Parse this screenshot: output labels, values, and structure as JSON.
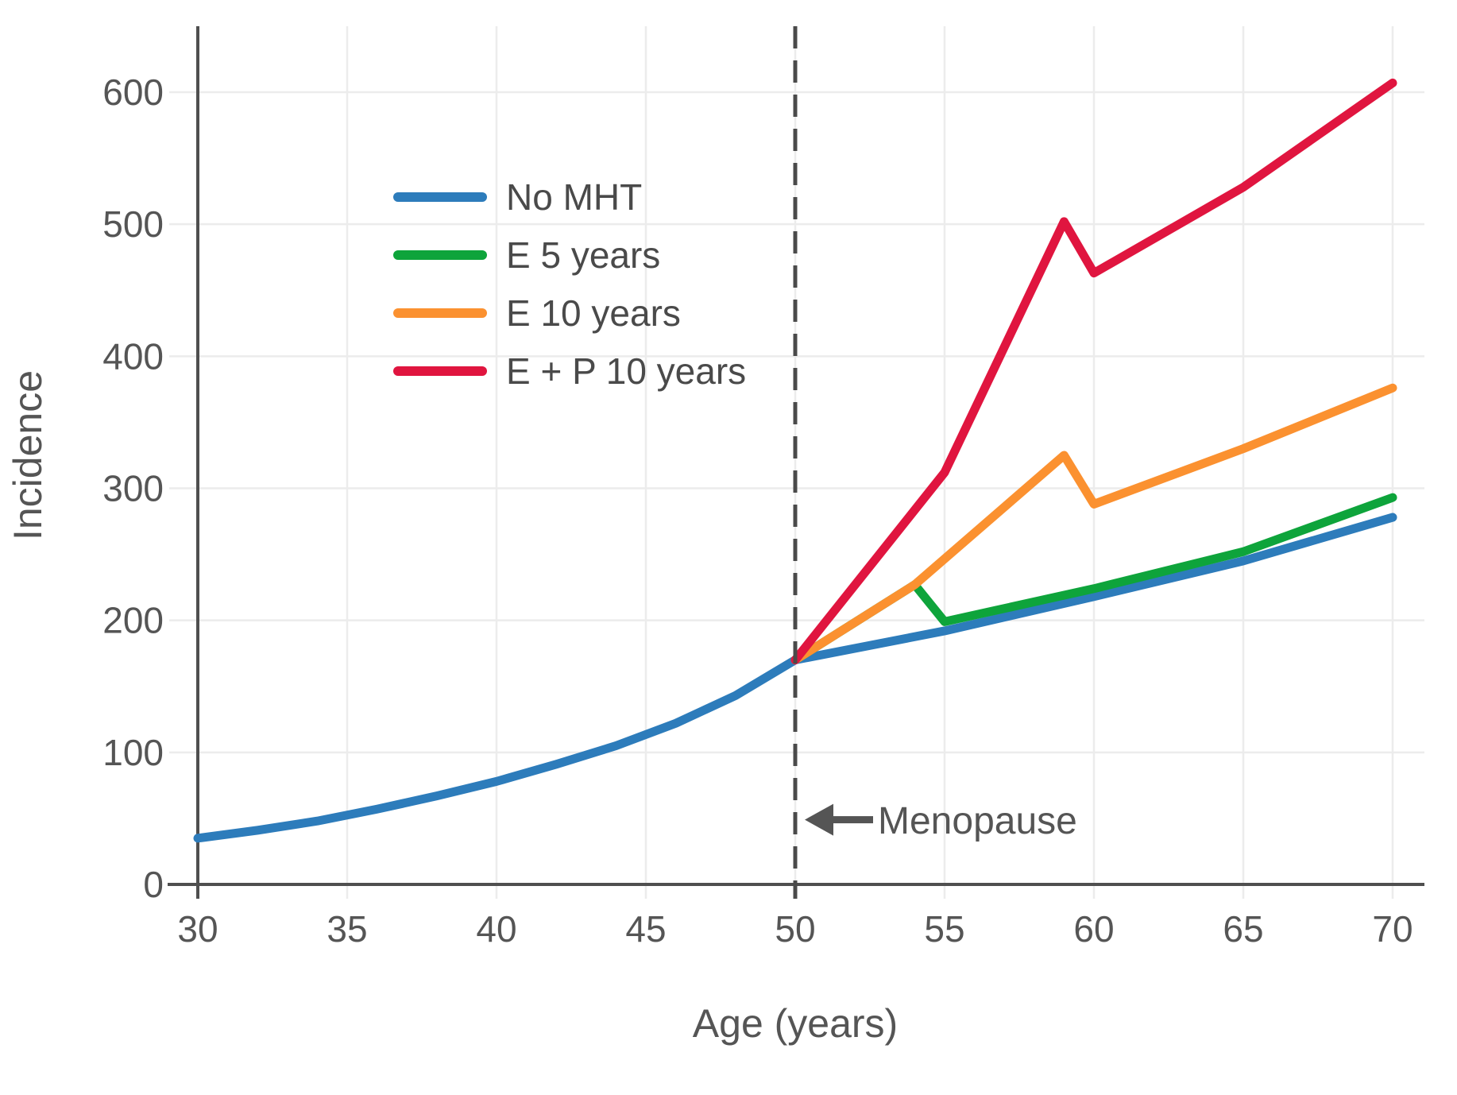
{
  "chart_data": {
    "type": "line",
    "title": "",
    "xlabel": "Age (years)",
    "ylabel": "Incidence",
    "xlim": [
      30,
      70
    ],
    "ylim": [
      0,
      600
    ],
    "xticks": [
      30,
      35,
      40,
      45,
      50,
      55,
      60,
      65,
      70
    ],
    "yticks": [
      0,
      100,
      200,
      300,
      400,
      500,
      600
    ],
    "grid": true,
    "legend_position": "upper-left-inside",
    "colors": {
      "grid": "#ececec",
      "axis": "#4f4f4f",
      "text": "#555555",
      "legend_text": "#4a4a4a"
    },
    "series": [
      {
        "name": "No MHT",
        "color": "#2d7cbb",
        "points": [
          [
            30,
            35
          ],
          [
            32,
            41
          ],
          [
            34,
            48
          ],
          [
            36,
            57
          ],
          [
            38,
            67
          ],
          [
            40,
            78
          ],
          [
            42,
            91
          ],
          [
            44,
            105
          ],
          [
            46,
            122
          ],
          [
            48,
            143
          ],
          [
            50,
            170
          ],
          [
            55,
            192
          ],
          [
            60,
            218
          ],
          [
            65,
            245
          ],
          [
            70,
            278
          ]
        ]
      },
      {
        "name": "E 5 years",
        "color": "#0ea43b",
        "points": [
          [
            50,
            170
          ],
          [
            54,
            227
          ],
          [
            55,
            199
          ],
          [
            60,
            224
          ],
          [
            65,
            252
          ],
          [
            70,
            293
          ]
        ]
      },
      {
        "name": "E 10 years",
        "color": "#fb9130",
        "points": [
          [
            50,
            170
          ],
          [
            54,
            227
          ],
          [
            59,
            325
          ],
          [
            60,
            288
          ],
          [
            65,
            330
          ],
          [
            70,
            376
          ]
        ]
      },
      {
        "name": "E + P 10 years",
        "color": "#e0153f",
        "points": [
          [
            50,
            170
          ],
          [
            55,
            312
          ],
          [
            59,
            502
          ],
          [
            60,
            463
          ],
          [
            65,
            528
          ],
          [
            70,
            607
          ]
        ]
      }
    ],
    "reference_line": {
      "x": 50,
      "style": "dashed",
      "color": "#4a4a4a"
    },
    "annotations": [
      {
        "text": "Menopause",
        "type": "arrow-left",
        "x": 50,
        "y": 49
      }
    ]
  }
}
